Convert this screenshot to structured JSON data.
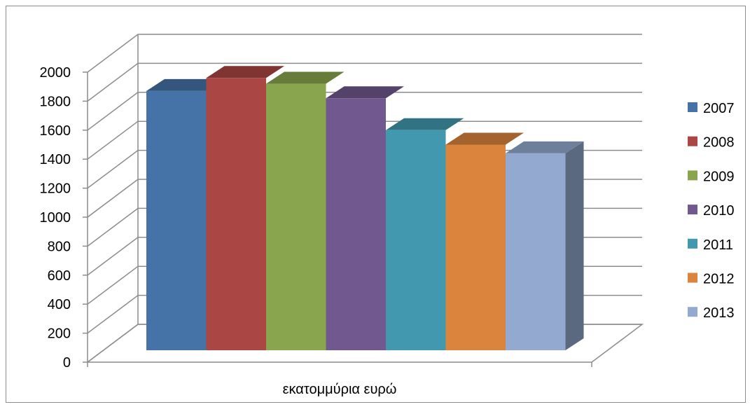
{
  "chart_data": {
    "type": "bar",
    "categories": [
      "εκατομμύρια ευρώ"
    ],
    "series": [
      {
        "name": "2007",
        "values": [
          1870
        ],
        "color": "#4572A7"
      },
      {
        "name": "2008",
        "values": [
          1960
        ],
        "color": "#AA4643"
      },
      {
        "name": "2009",
        "values": [
          1920
        ],
        "color": "#89A54E"
      },
      {
        "name": "2010",
        "values": [
          1820
        ],
        "color": "#71588F"
      },
      {
        "name": "2011",
        "values": [
          1600
        ],
        "color": "#4198AF"
      },
      {
        "name": "2012",
        "values": [
          1500
        ],
        "color": "#DB843D"
      },
      {
        "name": "2013",
        "values": [
          1440
        ],
        "color": "#93A9CF"
      }
    ],
    "y_ticks": [
      "0",
      "200",
      "400",
      "600",
      "800",
      "1000",
      "1200",
      "1400",
      "1600",
      "1800",
      "2000"
    ],
    "ylim": [
      0,
      2000
    ],
    "grid": true,
    "legend_position": "right",
    "style": "3d-column"
  }
}
